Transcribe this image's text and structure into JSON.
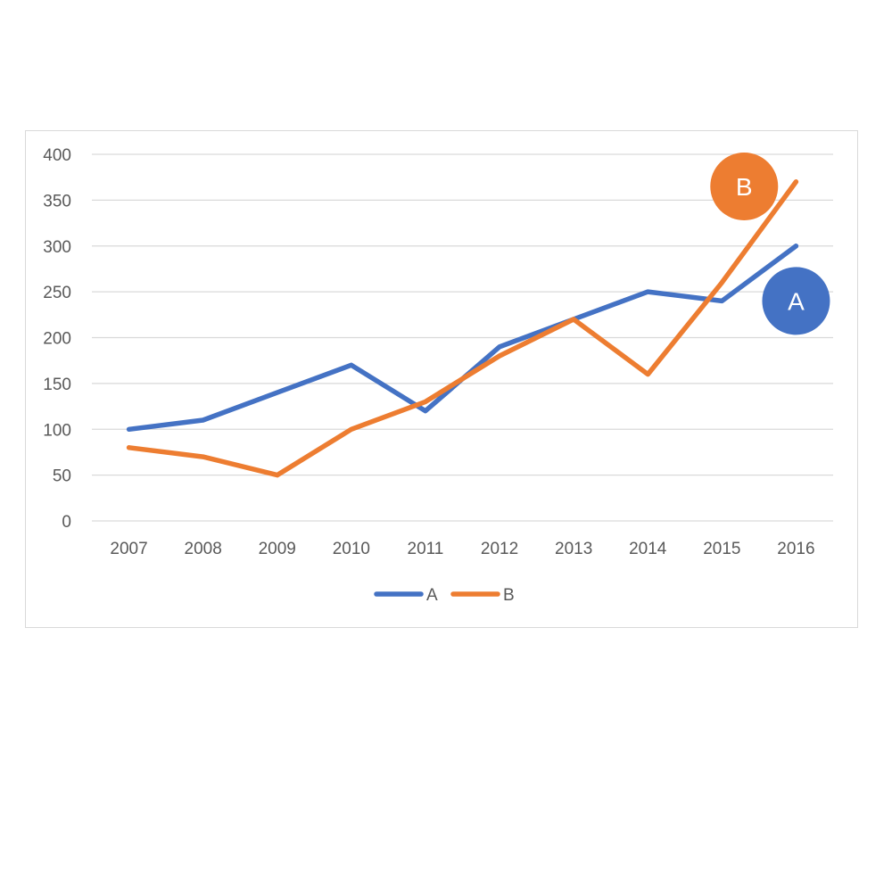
{
  "chart_data": {
    "type": "line",
    "title": "",
    "xlabel": "",
    "ylabel": "",
    "categories": [
      "2007",
      "2008",
      "2009",
      "2010",
      "2011",
      "2012",
      "2013",
      "2014",
      "2015",
      "2016"
    ],
    "ylim": [
      0,
      400
    ],
    "yticks": [
      0,
      50,
      100,
      150,
      200,
      250,
      300,
      350,
      400
    ],
    "grid": true,
    "legend_position": "bottom",
    "series": [
      {
        "name": "A",
        "color": "#4472C4",
        "values": [
          100,
          110,
          140,
          170,
          120,
          190,
          220,
          250,
          240,
          300
        ],
        "badge": {
          "label": "A",
          "x": "2016",
          "y": 240
        }
      },
      {
        "name": "B",
        "color": "#ED7D31",
        "values": [
          80,
          70,
          50,
          100,
          130,
          180,
          220,
          160,
          260,
          370
        ],
        "badge": {
          "label": "B",
          "x": "2015.3",
          "y": 365
        }
      }
    ]
  }
}
